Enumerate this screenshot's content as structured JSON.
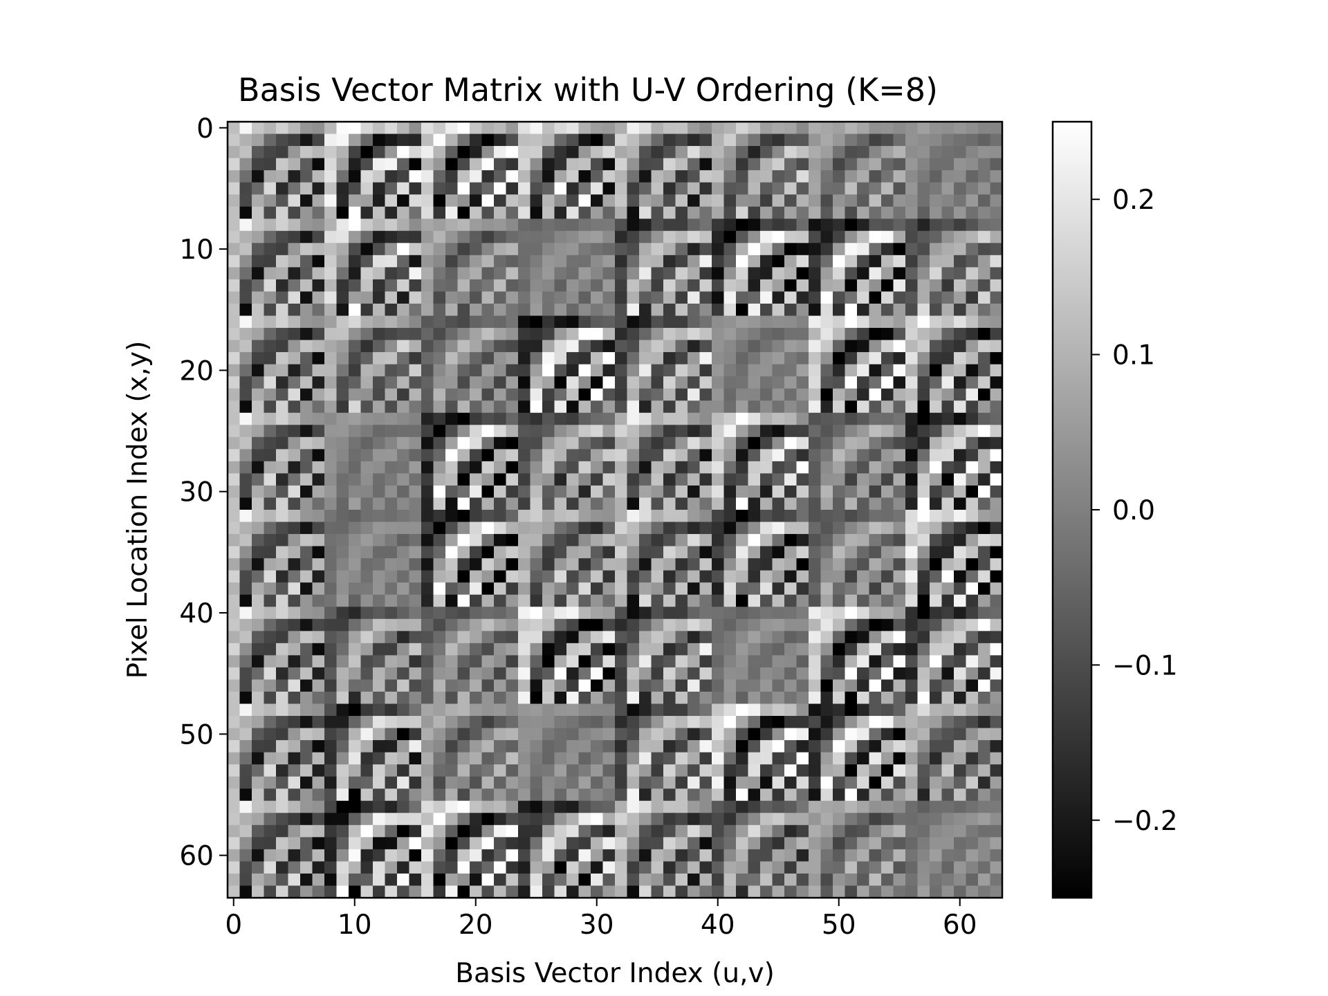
{
  "chart_data": {
    "type": "heatmap",
    "title": "Basis Vector Matrix with U-V Ordering (K=8)",
    "xlabel": "Basis Vector Index (u,v)",
    "ylabel": "Pixel Location Index (x,y)",
    "rows": 64,
    "cols": 64,
    "block_size": 8,
    "x_ticks": [
      0,
      10,
      20,
      30,
      40,
      50,
      60
    ],
    "y_ticks": [
      0,
      10,
      20,
      30,
      40,
      50,
      60
    ],
    "colormap": "gray",
    "vmin": -0.25,
    "vmax": 0.25,
    "colorbar_ticks": [
      0.2,
      0.1,
      0.0,
      -0.1,
      -0.2
    ],
    "colorbar_tick_labels": [
      "0.2",
      "0.1",
      "0.0",
      "−0.1",
      "−0.2"
    ]
  }
}
